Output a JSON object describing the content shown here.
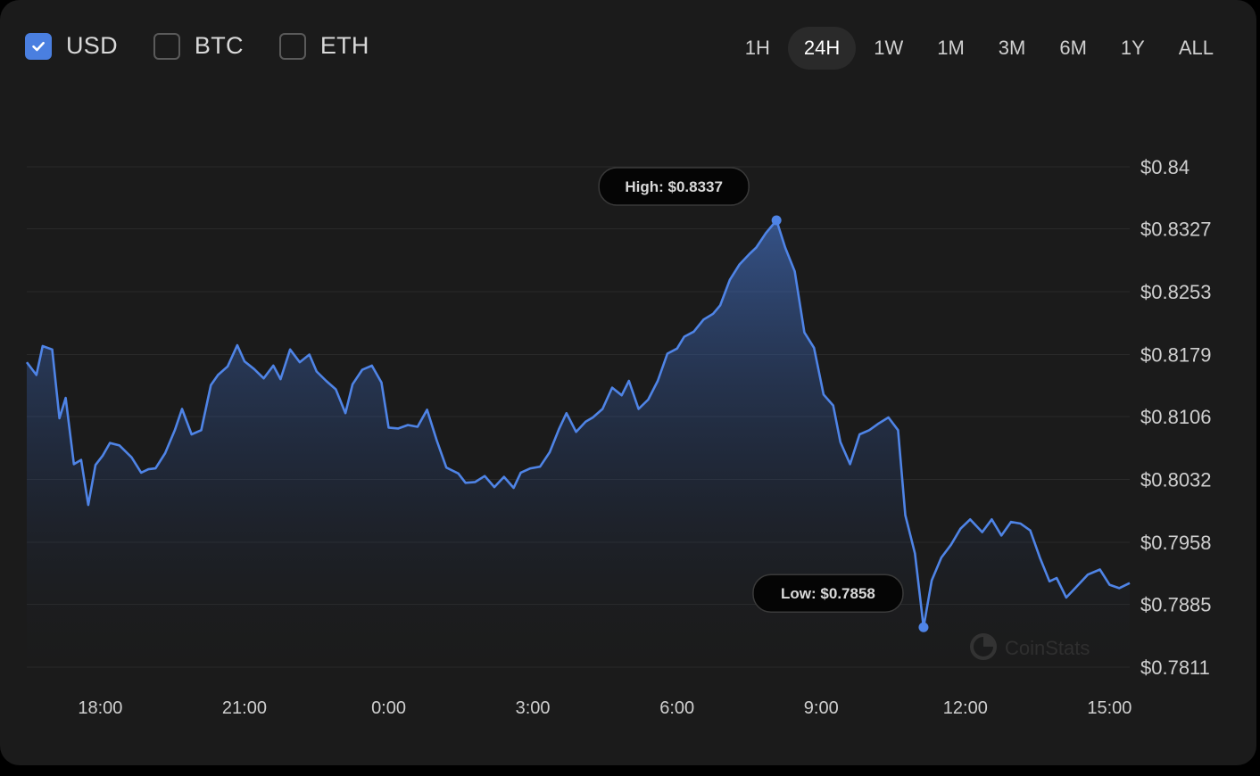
{
  "currency_toggles": [
    {
      "label": "USD",
      "checked": true
    },
    {
      "label": "BTC",
      "checked": false
    },
    {
      "label": "ETH",
      "checked": false
    }
  ],
  "time_ranges": [
    "1H",
    "24H",
    "1W",
    "1M",
    "3M",
    "6M",
    "1Y",
    "ALL"
  ],
  "active_range": "24H",
  "colors": {
    "accent": "#4a7fe0",
    "background": "#1b1b1b",
    "tooltip_bg": "#050505",
    "text": "#cfcfcf",
    "grid": "#2a2a2a"
  },
  "watermark": "CoinStats",
  "chart_data": {
    "type": "area",
    "title": "",
    "xlabel": "",
    "ylabel": "",
    "x_unit": "hours relative to 0:00",
    "x_ticks": [
      {
        "x": -6,
        "label": "18:00"
      },
      {
        "x": -3,
        "label": "21:00"
      },
      {
        "x": 0,
        "label": "0:00"
      },
      {
        "x": 3,
        "label": "3:00"
      },
      {
        "x": 6,
        "label": "6:00"
      },
      {
        "x": 9,
        "label": "9:00"
      },
      {
        "x": 12,
        "label": "12:00"
      },
      {
        "x": 15,
        "label": "15:00"
      }
    ],
    "y_ticks": [
      {
        "y": 0.84,
        "label": "$0.84"
      },
      {
        "y": 0.8327,
        "label": "$0.8327"
      },
      {
        "y": 0.8253,
        "label": "$0.8253"
      },
      {
        "y": 0.8179,
        "label": "$0.8179"
      },
      {
        "y": 0.8106,
        "label": "$0.8106"
      },
      {
        "y": 0.8032,
        "label": "$0.8032"
      },
      {
        "y": 0.7958,
        "label": "$0.7958"
      },
      {
        "y": 0.7885,
        "label": "$0.7885"
      },
      {
        "y": 0.7811,
        "label": "$0.7811"
      }
    ],
    "ylim": [
      0.7811,
      0.84
    ],
    "xlim": [
      -7.53,
      15.42
    ],
    "grid": true,
    "high": {
      "label": "High: $0.8337",
      "x": 8.07,
      "y": 0.8337
    },
    "low": {
      "label": "Low: $0.7858",
      "x": 11.13,
      "y": 0.7858
    },
    "series": [
      {
        "x": [
          -7.53,
          -7.33,
          -7.2,
          -7.0,
          -6.85,
          -6.72,
          -6.55,
          -6.4,
          -6.25,
          -6.1,
          -5.95,
          -5.8,
          -5.6,
          -5.35,
          -5.15,
          -5.0,
          -4.85,
          -4.65,
          -4.45,
          -4.3,
          -4.1,
          -3.9,
          -3.7,
          -3.55,
          -3.35,
          -3.15,
          -3.0,
          -2.8,
          -2.6,
          -2.4,
          -2.25,
          -2.05,
          -1.85,
          -1.65,
          -1.5,
          -1.3,
          -1.1,
          -0.9,
          -0.75,
          -0.55,
          -0.35,
          -0.15,
          0.0,
          0.2,
          0.4,
          0.6,
          0.8,
          1.0,
          1.2,
          1.45,
          1.6,
          1.8,
          2.0,
          2.2,
          2.4,
          2.6,
          2.75,
          2.95,
          3.15,
          3.35,
          3.55,
          3.7,
          3.9,
          4.1,
          4.25,
          4.45,
          4.65,
          4.85,
          5.0,
          5.2,
          5.4,
          5.6,
          5.8,
          6.0,
          6.15,
          6.35,
          6.55,
          6.75,
          6.9,
          7.1,
          7.3,
          7.5,
          7.65,
          7.85,
          8.07,
          8.25,
          8.45,
          8.65,
          8.85,
          9.05,
          9.25,
          9.4,
          9.6,
          9.8,
          10.0,
          10.2,
          10.4,
          10.6,
          10.75,
          10.95,
          11.13,
          11.3,
          11.5,
          11.7,
          11.9,
          12.1,
          12.35,
          12.55,
          12.75,
          12.95,
          13.15,
          13.35,
          13.55,
          13.75,
          13.9,
          14.1,
          14.3,
          14.55,
          14.8,
          15.0,
          15.2,
          15.42
        ],
        "y": [
          0.817,
          0.8155,
          0.8189,
          0.8185,
          0.8104,
          0.8128,
          0.805,
          0.8055,
          0.8002,
          0.8049,
          0.806,
          0.8075,
          0.8072,
          0.8058,
          0.804,
          0.8044,
          0.8045,
          0.8063,
          0.809,
          0.8115,
          0.8085,
          0.809,
          0.8143,
          0.8155,
          0.8165,
          0.819,
          0.8171,
          0.8162,
          0.8151,
          0.8166,
          0.815,
          0.8185,
          0.817,
          0.8179,
          0.8159,
          0.8148,
          0.8138,
          0.811,
          0.8144,
          0.8161,
          0.8166,
          0.8146,
          0.8093,
          0.8092,
          0.8096,
          0.8094,
          0.8114,
          0.8078,
          0.8046,
          0.8039,
          0.8028,
          0.8029,
          0.8036,
          0.8023,
          0.8035,
          0.8022,
          0.804,
          0.8045,
          0.8047,
          0.8064,
          0.8092,
          0.811,
          0.8088,
          0.81,
          0.8105,
          0.8115,
          0.814,
          0.8131,
          0.8148,
          0.8115,
          0.8126,
          0.8148,
          0.818,
          0.8186,
          0.82,
          0.8206,
          0.822,
          0.8227,
          0.8237,
          0.8267,
          0.8285,
          0.8297,
          0.8305,
          0.8322,
          0.8337,
          0.8305,
          0.8277,
          0.8205,
          0.8187,
          0.8132,
          0.8119,
          0.8076,
          0.805,
          0.8085,
          0.809,
          0.8098,
          0.8105,
          0.809,
          0.799,
          0.7945,
          0.7858,
          0.7913,
          0.794,
          0.7955,
          0.7974,
          0.7985,
          0.797,
          0.7985,
          0.7966,
          0.7982,
          0.798,
          0.7972,
          0.794,
          0.7912,
          0.7916,
          0.7893,
          0.7905,
          0.792,
          0.7926,
          0.7908,
          0.7904,
          0.791
        ]
      }
    ]
  }
}
